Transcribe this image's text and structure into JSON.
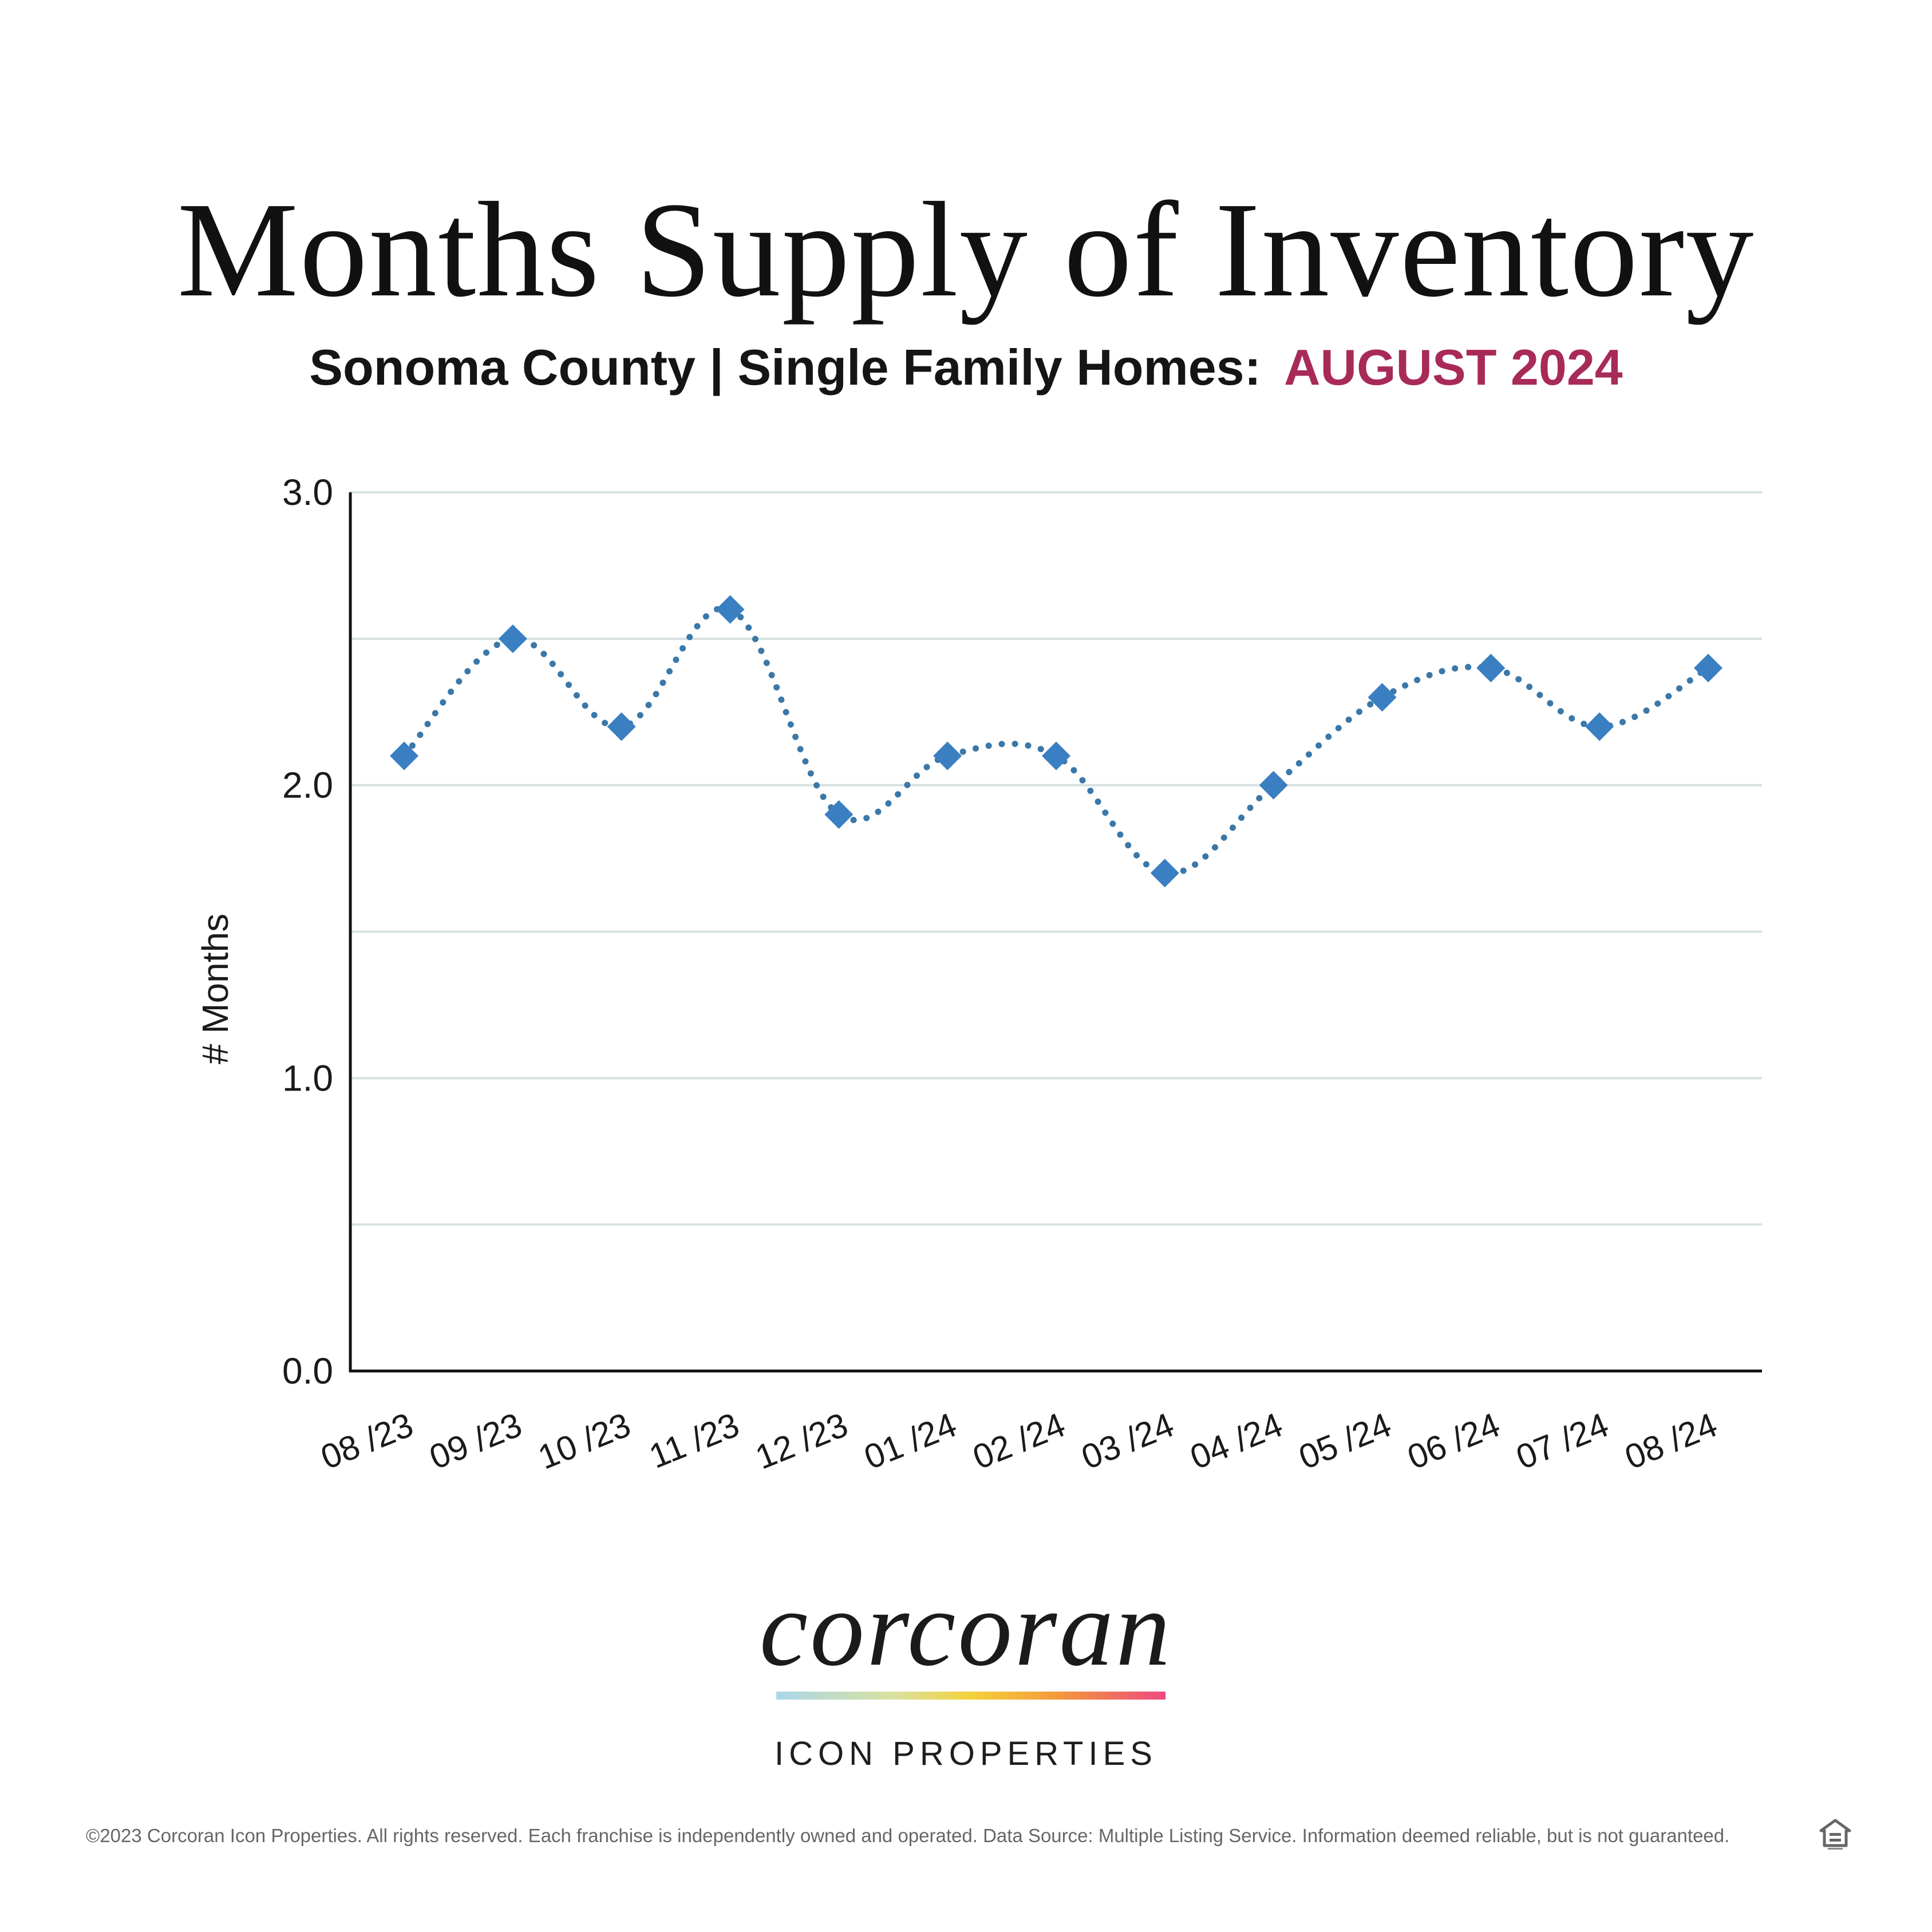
{
  "header": {
    "title": "Months Supply of Inventory",
    "subtitle_main": "Sonoma County | Single Family Homes:",
    "subtitle_accent": "AUGUST 2024"
  },
  "colors": {
    "accent": "#a82a58",
    "series": "#3a7fc1",
    "dots": "#3b78a8",
    "grid": "#d8e1e2",
    "axis": "#111111"
  },
  "chart_data": {
    "type": "line",
    "title": "",
    "xlabel": "",
    "ylabel": "# Months",
    "categories": [
      "08 /23",
      "09 /23",
      "10 /23",
      "11 /23",
      "12 /23",
      "01 /24",
      "02 /24",
      "03 /24",
      "04 /24",
      "05 /24",
      "06 /24",
      "07 /24",
      "08 /24"
    ],
    "series": [
      {
        "values": [
          2.1,
          2.5,
          2.2,
          2.6,
          1.9,
          2.1,
          2.1,
          1.7,
          2.0,
          2.3,
          2.4,
          2.2,
          2.4
        ]
      }
    ],
    "ylim": [
      0,
      3
    ],
    "yticks": [
      0,
      1,
      2,
      3
    ],
    "ytick_labels": [
      "0.0",
      "1.0",
      "2.0",
      "3.0"
    ],
    "minor_gridlines": [
      0.5,
      1.5,
      2.5
    ],
    "grid": true,
    "line_style": "dotted",
    "marker": "diamond",
    "legend": "none"
  },
  "brand": {
    "logo_text": "corcoran",
    "subtitle": "ICON PROPERTIES"
  },
  "footer": {
    "text": "©2023 Corcoran Icon Properties. All rights reserved. Each franchise is independently owned and operated. Data Source: Multiple Listing Service. Information deemed reliable, but is not guaranteed.",
    "icon": "equal-housing-opportunity-icon"
  }
}
